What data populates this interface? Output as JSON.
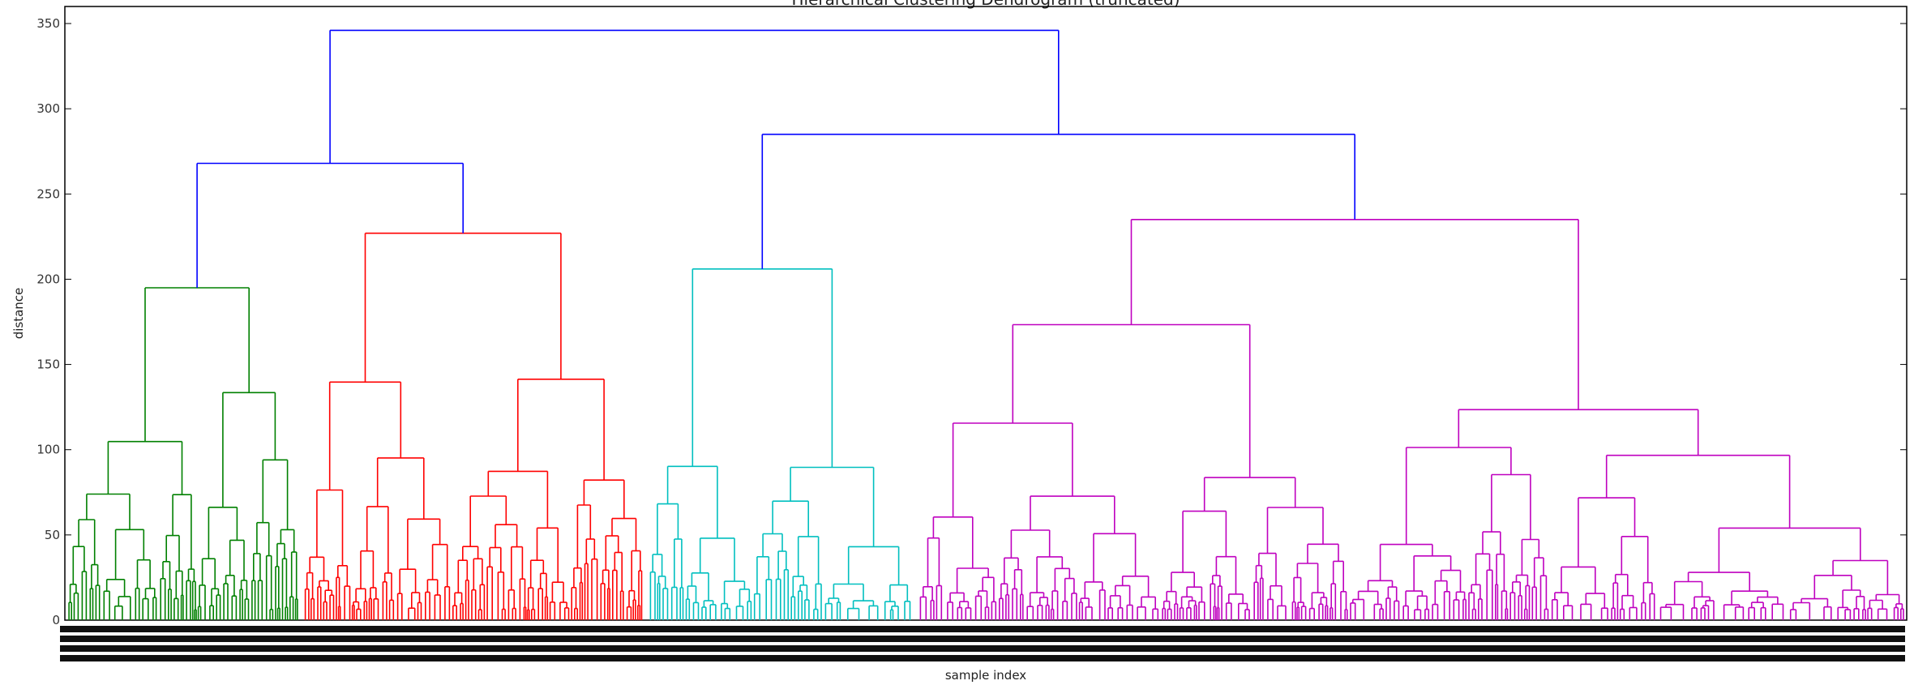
{
  "chart_data": {
    "type": "dendrogram",
    "title": "Hierarchical Clustering Dendrogram (truncated)",
    "xlabel": "sample index",
    "ylabel": "distance",
    "ylim": [
      0,
      360
    ],
    "yticks": [
      0,
      50,
      100,
      150,
      200,
      250,
      300,
      350
    ],
    "link_color": "#0000ff",
    "clusters": [
      {
        "color": "#008000",
        "leaf_range": [
          0,
          0.128
        ],
        "height": 195
      },
      {
        "color": "#ff0000",
        "leaf_range": [
          0.128,
          0.315
        ],
        "height": 227
      },
      {
        "color": "#00bfbf",
        "leaf_range": [
          0.315,
          0.462
        ],
        "height": 206
      },
      {
        "color": "#bf00bf",
        "leaf_range": [
          0.462,
          1.0
        ],
        "height": 235
      }
    ],
    "top_links": [
      {
        "left_height": 195,
        "right_height": 227,
        "merge_height": 268
      },
      {
        "left_height": 206,
        "right_height": 235,
        "merge_height": 285
      },
      {
        "left_height": 268,
        "right_height": 285,
        "merge_height": 346
      }
    ]
  }
}
